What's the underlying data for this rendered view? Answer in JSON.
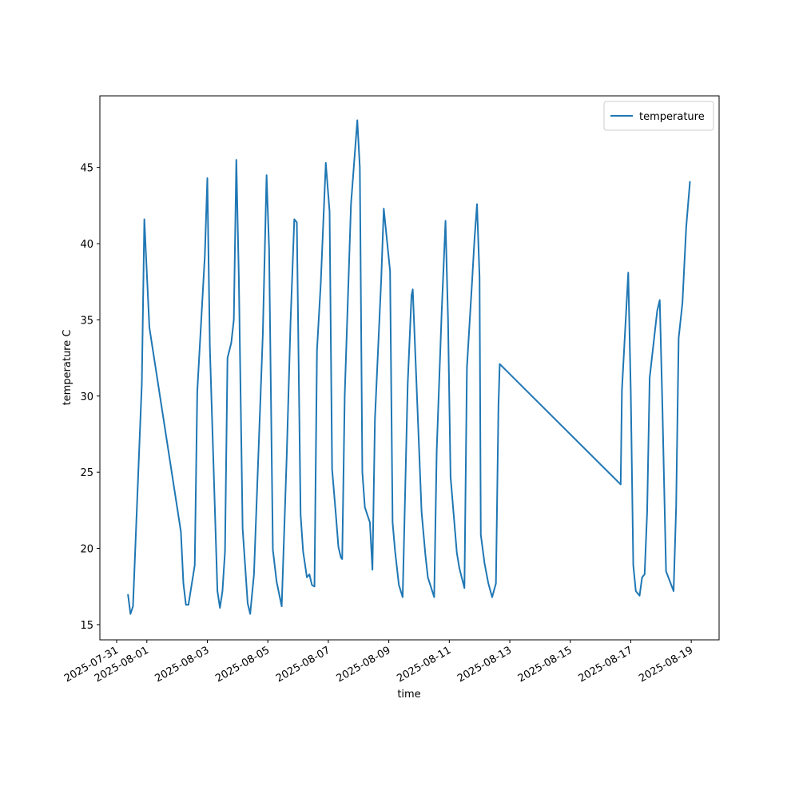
{
  "chart_data": {
    "type": "line",
    "xlabel": "time",
    "ylabel": "temperature C",
    "x": [
      "2025-07-31 09:00",
      "2025-07-31 11:00",
      "2025-07-31 13:00",
      "2025-07-31 20:00",
      "2025-07-31 22:00",
      "2025-08-01 02:00",
      "2025-08-02 03:00",
      "2025-08-02 05:00",
      "2025-08-02 07:00",
      "2025-08-02 09:00",
      "2025-08-02 14:00",
      "2025-08-02 16:00",
      "2025-08-02 22:00",
      "2025-08-03 00:00",
      "2025-08-03 02:00",
      "2025-08-03 08:00",
      "2025-08-03 10:00",
      "2025-08-03 12:00",
      "2025-08-03 14:00",
      "2025-08-03 16:00",
      "2025-08-03 19:00",
      "2025-08-03 21:00",
      "2025-08-03 23:00",
      "2025-08-04 01:00",
      "2025-08-04 04:00",
      "2025-08-04 08:00",
      "2025-08-04 10:00",
      "2025-08-04 13:00",
      "2025-08-04 20:00",
      "2025-08-04 23:00",
      "2025-08-05 01:00",
      "2025-08-05 04:00",
      "2025-08-05 07:00",
      "2025-08-05 11:00",
      "2025-08-05 15:00",
      "2025-08-05 18:00",
      "2025-08-05 21:00",
      "2025-08-05 23:00",
      "2025-08-06 02:00",
      "2025-08-06 04:00",
      "2025-08-06 07:00",
      "2025-08-06 09:00",
      "2025-08-06 11:00",
      "2025-08-06 13:00",
      "2025-08-06 15:00",
      "2025-08-06 18:00",
      "2025-08-06 22:00",
      "2025-08-07 01:00",
      "2025-08-07 03:00",
      "2025-08-07 06:00",
      "2025-08-07 08:00",
      "2025-08-07 10:00",
      "2025-08-07 11:00",
      "2025-08-07 13:00",
      "2025-08-07 18:00",
      "2025-08-07 23:00",
      "2025-08-08 01:00",
      "2025-08-08 03:00",
      "2025-08-08 05:00",
      "2025-08-08 09:00",
      "2025-08-08 11:00",
      "2025-08-08 13:00",
      "2025-08-08 18:00",
      "2025-08-08 20:00",
      "2025-08-09 01:00",
      "2025-08-09 03:00",
      "2025-08-09 05:00",
      "2025-08-09 08:00",
      "2025-08-09 11:00",
      "2025-08-09 15:00",
      "2025-08-09 18:00",
      "2025-08-09 19:00",
      "2025-08-10 02:00",
      "2025-08-10 05:00",
      "2025-08-10 07:00",
      "2025-08-10 12:00",
      "2025-08-10 14:00",
      "2025-08-10 18:00",
      "2025-08-10 21:00",
      "2025-08-10 23:00",
      "2025-08-11 01:00",
      "2025-08-11 06:00",
      "2025-08-11 08:00",
      "2025-08-11 12:00",
      "2025-08-11 14:00",
      "2025-08-11 18:00",
      "2025-08-11 20:00",
      "2025-08-11 22:00",
      "2025-08-12 00:00",
      "2025-08-12 01:00",
      "2025-08-12 04:00",
      "2025-08-12 07:00",
      "2025-08-12 10:00",
      "2025-08-12 13:00",
      "2025-08-12 15:00",
      "2025-08-12 16:00",
      "2025-08-16 16:00",
      "2025-08-16 17:00",
      "2025-08-16 22:00",
      "2025-08-17 00:00",
      "2025-08-17 02:00",
      "2025-08-17 04:00",
      "2025-08-17 07:00",
      "2025-08-17 09:00",
      "2025-08-17 11:00",
      "2025-08-17 13:00",
      "2025-08-17 15:00",
      "2025-08-17 21:00",
      "2025-08-17 23:00",
      "2025-08-18 01:00",
      "2025-08-18 04:00",
      "2025-08-18 10:00",
      "2025-08-18 12:00",
      "2025-08-18 14:00",
      "2025-08-18 17:00",
      "2025-08-18 20:00",
      "2025-08-18 23:00"
    ],
    "series": [
      {
        "name": "temperature",
        "color": "#1f77b4",
        "values": [
          17.0,
          15.7,
          16.2,
          30.8,
          41.6,
          34.5,
          21.1,
          17.7,
          16.3,
          16.3,
          18.9,
          30.3,
          39.2,
          44.3,
          33.2,
          17.2,
          16.1,
          17.2,
          19.8,
          32.5,
          33.5,
          35.0,
          45.5,
          37.7,
          21.3,
          16.4,
          15.7,
          18.3,
          34.0,
          44.5,
          39.7,
          19.9,
          17.8,
          16.2,
          26.1,
          34.8,
          41.6,
          41.4,
          22.2,
          19.8,
          18.1,
          18.3,
          17.6,
          17.5,
          33.0,
          37.4,
          45.3,
          42.1,
          25.2,
          22.2,
          20.1,
          19.4,
          19.3,
          30.0,
          42.6,
          48.1,
          45.0,
          25.0,
          22.7,
          21.7,
          18.6,
          28.5,
          37.7,
          42.3,
          38.2,
          21.7,
          19.8,
          17.6,
          16.8,
          30.8,
          36.6,
          37.0,
          22.4,
          19.6,
          18.1,
          16.8,
          26.4,
          35.6,
          41.5,
          35.0,
          24.7,
          19.7,
          18.7,
          17.4,
          31.9,
          37.4,
          40.3,
          42.6,
          37.8,
          20.9,
          19.0,
          17.7,
          16.8,
          17.7,
          29.3,
          32.1,
          24.2,
          30.4,
          38.1,
          30.3,
          18.9,
          17.2,
          16.9,
          18.1,
          18.3,
          22.4,
          31.2,
          35.6,
          36.3,
          29.7,
          18.5,
          17.2,
          22.7,
          33.8,
          36.1,
          41.1,
          44.1
        ]
      }
    ],
    "xlim": [
      "2025-07-30 10:43",
      "2025-08-19 22:06"
    ],
    "xticks": [
      "2025-07-31",
      "2025-08-01",
      "2025-08-03",
      "2025-08-05",
      "2025-08-07",
      "2025-08-09",
      "2025-08-11",
      "2025-08-13",
      "2025-08-15",
      "2025-08-17",
      "2025-08-19"
    ],
    "ylim": [
      14.0,
      49.7
    ],
    "yticks": [
      15,
      20,
      25,
      30,
      35,
      40,
      45
    ],
    "legend": "upper right"
  }
}
